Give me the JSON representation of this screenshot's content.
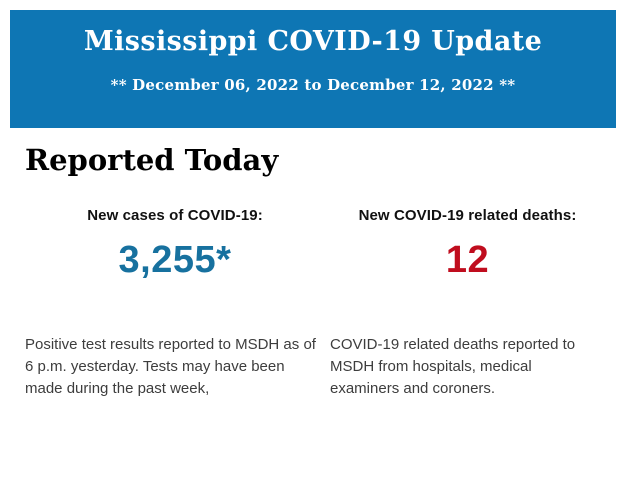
{
  "header": {
    "title": "Mississippi COVID-19 Update",
    "subtitle": "** December 06, 2022 to December 12, 2022 **",
    "bg_color": "#0e76b4",
    "text_color": "#ffffff"
  },
  "section": {
    "heading": "Reported Today"
  },
  "stats": [
    {
      "label": "New cases of COVID-19:",
      "value": "3,255*",
      "value_color": "#17719f",
      "description": "Positive test results reported to MSDH as of 6 p.m. yesterday. Tests may have been made during the past week,"
    },
    {
      "label": "New COVID-19 related deaths:",
      "value": "12",
      "value_color": "#c00d1e",
      "description": "COVID-19 related deaths reported to MSDH from hospitals, medical examiners and coroners."
    }
  ]
}
